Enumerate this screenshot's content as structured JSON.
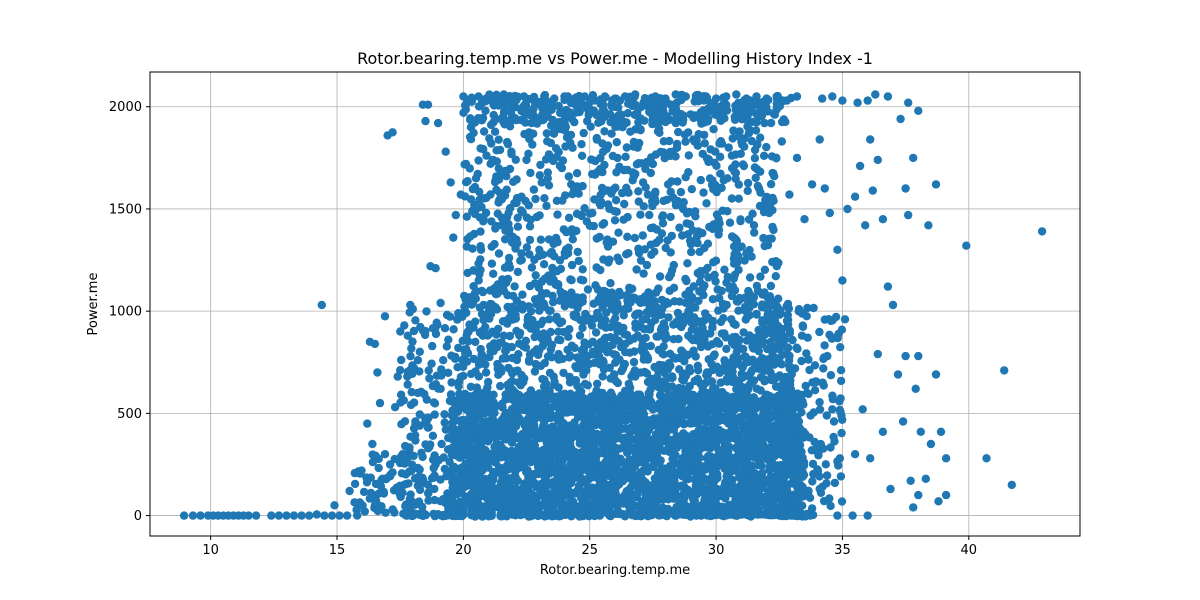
{
  "chart_data": {
    "type": "scatter",
    "title": "Rotor.bearing.temp.me vs Power.me - Modelling History Index -1",
    "xlabel": "Rotor.bearing.temp.me",
    "ylabel": "Power.me",
    "xlim": [
      7.6,
      44.4
    ],
    "ylim": [
      -100,
      2170
    ],
    "xticks": [
      10,
      15,
      20,
      25,
      30,
      35,
      40
    ],
    "yticks": [
      0,
      500,
      1000,
      1500,
      2000
    ],
    "grid": true,
    "marker_color": "#1f77b4",
    "series": [
      {
        "points": [
          [
            8.95,
            0
          ],
          [
            9.3,
            0
          ],
          [
            9.6,
            0
          ],
          [
            9.9,
            0
          ],
          [
            10.1,
            0
          ],
          [
            10.3,
            0
          ],
          [
            10.5,
            0
          ],
          [
            10.7,
            0
          ],
          [
            10.9,
            0
          ],
          [
            11.1,
            0
          ],
          [
            11.3,
            0
          ],
          [
            11.5,
            0
          ],
          [
            11.8,
            0
          ],
          [
            12.4,
            0
          ],
          [
            12.7,
            0
          ],
          [
            13.0,
            0
          ],
          [
            13.3,
            0
          ],
          [
            13.6,
            0
          ],
          [
            13.9,
            0
          ],
          [
            14.2,
            5
          ],
          [
            14.5,
            0
          ],
          [
            14.8,
            0
          ],
          [
            15.1,
            0
          ],
          [
            15.4,
            0
          ],
          [
            14.9,
            50
          ],
          [
            14.4,
            1030
          ],
          [
            15.5,
            120
          ],
          [
            15.8,
            60
          ],
          [
            16.1,
            20
          ],
          [
            16.2,
            450
          ],
          [
            16.4,
            350
          ],
          [
            16.3,
            850
          ],
          [
            16.5,
            840
          ],
          [
            16.6,
            700
          ],
          [
            16.7,
            550
          ],
          [
            16.9,
            300
          ],
          [
            16.9,
            975
          ],
          [
            17.0,
            1860
          ],
          [
            17.2,
            1875
          ],
          [
            17.3,
            530
          ],
          [
            17.4,
            680
          ],
          [
            17.5,
            100
          ],
          [
            17.7,
            340
          ],
          [
            17.8,
            880
          ],
          [
            17.9,
            1030
          ],
          [
            18.0,
            1010
          ],
          [
            18.1,
            460
          ],
          [
            18.2,
            760
          ],
          [
            18.4,
            2010
          ],
          [
            18.6,
            2010
          ],
          [
            18.5,
            1930
          ],
          [
            18.7,
            1220
          ],
          [
            18.9,
            1210
          ],
          [
            19.0,
            1920
          ],
          [
            19.1,
            1040
          ],
          [
            19.2,
            760
          ],
          [
            19.3,
            1780
          ],
          [
            19.5,
            1630
          ],
          [
            19.6,
            1360
          ],
          [
            19.7,
            1470
          ],
          [
            19.8,
            990
          ],
          [
            19.9,
            1570
          ],
          [
            20.1,
            1720
          ],
          [
            20.3,
            1900
          ],
          [
            20.5,
            1650
          ],
          [
            20.7,
            1300
          ],
          [
            20.9,
            1480
          ],
          [
            21.1,
            1820
          ],
          [
            21.3,
            1940
          ],
          [
            21.5,
            1420
          ],
          [
            21.7,
            1660
          ],
          [
            21.9,
            1780
          ],
          [
            22.1,
            1350
          ],
          [
            22.3,
            1560
          ],
          [
            22.5,
            1740
          ],
          [
            22.7,
            1920
          ],
          [
            22.9,
            1460
          ],
          [
            23.1,
            1630
          ],
          [
            23.3,
            1870
          ],
          [
            23.5,
            1290
          ],
          [
            23.7,
            1540
          ],
          [
            23.9,
            1700
          ],
          [
            24.1,
            1850
          ],
          [
            24.3,
            1400
          ],
          [
            24.5,
            1610
          ],
          [
            24.7,
            1760
          ],
          [
            24.9,
            1930
          ],
          [
            25.1,
            1480
          ],
          [
            25.3,
            1680
          ],
          [
            25.5,
            1820
          ],
          [
            25.7,
            1350
          ],
          [
            25.9,
            1590
          ],
          [
            26.1,
            1750
          ],
          [
            26.3,
            1900
          ],
          [
            26.5,
            1460
          ],
          [
            26.7,
            1640
          ],
          [
            26.9,
            1800
          ],
          [
            27.1,
            1370
          ],
          [
            27.3,
            1570
          ],
          [
            27.5,
            1720
          ],
          [
            27.7,
            1880
          ],
          [
            27.9,
            1430
          ],
          [
            28.1,
            1620
          ],
          [
            28.3,
            1780
          ],
          [
            28.5,
            1940
          ],
          [
            28.7,
            1500
          ],
          [
            28.9,
            1680
          ],
          [
            29.1,
            1840
          ],
          [
            29.3,
            1390
          ],
          [
            29.5,
            1580
          ],
          [
            29.7,
            1730
          ],
          [
            29.9,
            1890
          ],
          [
            30.1,
            1450
          ],
          [
            30.3,
            1640
          ],
          [
            30.5,
            1800
          ],
          [
            30.7,
            1360
          ],
          [
            30.9,
            1550
          ],
          [
            31.1,
            1710
          ],
          [
            31.3,
            1870
          ],
          [
            31.5,
            1420
          ],
          [
            31.7,
            1600
          ],
          [
            31.9,
            1760
          ],
          [
            32.1,
            1480
          ],
          [
            32.3,
            1660
          ],
          [
            32.6,
            1830
          ],
          [
            32.9,
            1570
          ],
          [
            33.2,
            1750
          ],
          [
            33.5,
            1450
          ],
          [
            33.8,
            1620
          ],
          [
            34.1,
            1840
          ],
          [
            34.3,
            1600
          ],
          [
            34.5,
            1480
          ],
          [
            34.8,
            1300
          ],
          [
            35.0,
            1150
          ],
          [
            35.2,
            1500
          ],
          [
            35.5,
            1560
          ],
          [
            35.7,
            1710
          ],
          [
            35.9,
            1420
          ],
          [
            36.1,
            1840
          ],
          [
            36.2,
            1590
          ],
          [
            36.4,
            1740
          ],
          [
            36.6,
            1450
          ],
          [
            36.8,
            1120
          ],
          [
            37.0,
            1030
          ],
          [
            37.3,
            1940
          ],
          [
            37.5,
            1600
          ],
          [
            37.6,
            1470
          ],
          [
            37.8,
            1750
          ],
          [
            38.0,
            1980
          ],
          [
            38.4,
            1420
          ],
          [
            38.7,
            1620
          ],
          [
            39.9,
            1320
          ],
          [
            42.9,
            1390
          ],
          [
            34.2,
            2040
          ],
          [
            34.6,
            2050
          ],
          [
            35.0,
            2030
          ],
          [
            35.6,
            2020
          ],
          [
            36.0,
            2030
          ],
          [
            36.3,
            2060
          ],
          [
            36.8,
            2050
          ],
          [
            37.6,
            2020
          ],
          [
            35.5,
            300
          ],
          [
            35.8,
            520
          ],
          [
            36.1,
            280
          ],
          [
            36.4,
            790
          ],
          [
            36.6,
            410
          ],
          [
            36.9,
            130
          ],
          [
            37.2,
            690
          ],
          [
            37.4,
            460
          ],
          [
            37.7,
            170
          ],
          [
            37.9,
            620
          ],
          [
            38.0,
            100
          ],
          [
            38.1,
            410
          ],
          [
            38.3,
            180
          ],
          [
            38.5,
            350
          ],
          [
            38.7,
            690
          ],
          [
            38.8,
            70
          ],
          [
            38.9,
            410
          ],
          [
            39.1,
            100
          ],
          [
            39.1,
            280
          ],
          [
            40.7,
            280
          ],
          [
            41.4,
            710
          ],
          [
            41.7,
            150
          ],
          [
            37.8,
            40
          ],
          [
            38.0,
            780
          ],
          [
            37.5,
            780
          ],
          [
            36.0,
            0
          ],
          [
            35.4,
            0
          ],
          [
            34.8,
            0
          ],
          [
            33.5,
            0
          ],
          [
            33.0,
            0
          ],
          [
            32.5,
            0
          ],
          [
            20.0,
            2050
          ],
          [
            20.3,
            2040
          ],
          [
            20.6,
            2050
          ],
          [
            20.9,
            2040
          ],
          [
            21.2,
            2050
          ],
          [
            21.6,
            2060
          ],
          [
            22.0,
            2040
          ],
          [
            22.4,
            2050
          ],
          [
            22.8,
            2030
          ],
          [
            23.2,
            2050
          ],
          [
            23.6,
            2040
          ],
          [
            24.0,
            2050
          ],
          [
            24.4,
            2040
          ],
          [
            24.8,
            2050
          ],
          [
            25.2,
            2030
          ],
          [
            25.6,
            2050
          ],
          [
            26.0,
            2040
          ],
          [
            26.4,
            2050
          ],
          [
            26.8,
            2060
          ],
          [
            27.2,
            2040
          ],
          [
            27.6,
            2050
          ],
          [
            28.0,
            2040
          ],
          [
            28.4,
            2060
          ],
          [
            28.8,
            2050
          ],
          [
            29.2,
            2040
          ],
          [
            29.6,
            2050
          ],
          [
            30.0,
            2040
          ],
          [
            30.4,
            2050
          ],
          [
            30.8,
            2060
          ],
          [
            31.2,
            2040
          ],
          [
            31.6,
            2050
          ],
          [
            32.0,
            2040
          ],
          [
            32.4,
            2050
          ],
          [
            32.8,
            2030
          ],
          [
            33.2,
            2050
          ],
          [
            18.2,
            600
          ],
          [
            18.6,
            430
          ],
          [
            18.9,
            250
          ],
          [
            19.1,
            620
          ],
          [
            19.4,
            380
          ],
          [
            19.6,
            150
          ],
          [
            19.8,
            820
          ],
          [
            20.1,
            520
          ],
          [
            20.4,
            300
          ],
          [
            20.6,
            90
          ],
          [
            20.9,
            700
          ],
          [
            21.1,
            460
          ],
          [
            21.4,
            210
          ],
          [
            21.6,
            880
          ],
          [
            21.9,
            620
          ],
          [
            22.1,
            380
          ],
          [
            22.4,
            140
          ],
          [
            22.6,
            760
          ],
          [
            22.9,
            510
          ],
          [
            23.1,
            270
          ],
          [
            23.4,
            960
          ],
          [
            23.6,
            640
          ],
          [
            23.9,
            420
          ],
          [
            24.1,
            190
          ],
          [
            24.4,
            820
          ],
          [
            24.6,
            560
          ],
          [
            24.9,
            330
          ],
          [
            25.1,
            110
          ],
          [
            25.4,
            740
          ],
          [
            25.6,
            490
          ],
          [
            25.9,
            250
          ],
          [
            26.1,
            900
          ],
          [
            26.4,
            610
          ],
          [
            26.6,
            380
          ],
          [
            26.9,
            150
          ],
          [
            27.1,
            800
          ],
          [
            27.4,
            540
          ],
          [
            27.6,
            300
          ],
          [
            27.9,
            80
          ],
          [
            28.1,
            720
          ],
          [
            28.4,
            470
          ],
          [
            28.6,
            240
          ],
          [
            28.9,
            880
          ],
          [
            29.1,
            590
          ],
          [
            29.4,
            360
          ],
          [
            29.6,
            130
          ],
          [
            29.9,
            780
          ],
          [
            30.1,
            520
          ],
          [
            30.4,
            280
          ],
          [
            30.6,
            960
          ],
          [
            30.9,
            660
          ],
          [
            31.1,
            410
          ],
          [
            31.4,
            180
          ],
          [
            31.6,
            840
          ],
          [
            31.9,
            570
          ],
          [
            32.1,
            330
          ],
          [
            32.4,
            100
          ],
          [
            32.6,
            740
          ],
          [
            32.9,
            490
          ],
          [
            33.1,
            250
          ],
          [
            33.4,
            880
          ],
          [
            33.6,
            600
          ],
          [
            33.9,
            360
          ],
          [
            34.1,
            130
          ],
          [
            34.4,
            780
          ],
          [
            34.6,
            520
          ],
          [
            34.9,
            280
          ],
          [
            35.1,
            960
          ],
          [
            16.8,
            180
          ],
          [
            17.1,
            250
          ],
          [
            17.6,
            300
          ],
          [
            16.5,
            50
          ],
          [
            17.4,
            120
          ],
          [
            17.9,
            40
          ],
          [
            18.6,
            150
          ],
          [
            19.2,
            80
          ]
        ]
      }
    ],
    "bands": [
      {
        "x": [
          15.6,
          18.5
        ],
        "y": [
          0,
          300
        ],
        "n": 70,
        "seed": 11
      },
      {
        "x": [
          17.5,
          20.0
        ],
        "y": [
          0,
          1000
        ],
        "n": 180,
        "seed": 12
      },
      {
        "x": [
          19.5,
          33.5
        ],
        "y": [
          0,
          600
        ],
        "n": 2600,
        "seed": 13
      },
      {
        "x": [
          20.0,
          33.0
        ],
        "y": [
          500,
          1100
        ],
        "n": 900,
        "seed": 14
      },
      {
        "x": [
          20.0,
          32.5
        ],
        "y": [
          1000,
          2040
        ],
        "n": 750,
        "seed": 15
      },
      {
        "x": [
          20.0,
          33.0
        ],
        "y": [
          1920,
          2060
        ],
        "n": 260,
        "seed": 16
      },
      {
        "x": [
          32.0,
          35.0
        ],
        "y": [
          0,
          1050
        ],
        "n": 170,
        "seed": 17
      },
      {
        "x": [
          17.5,
          34.0
        ],
        "y": [
          -5,
          10
        ],
        "n": 200,
        "seed": 18
      }
    ]
  }
}
